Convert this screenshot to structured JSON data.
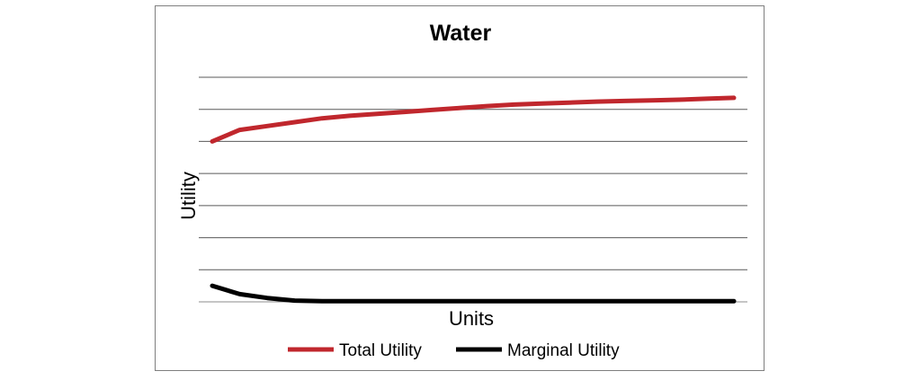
{
  "chart_data": {
    "type": "line",
    "title": "Water",
    "xlabel": "Units",
    "ylabel": "Utility",
    "x": [
      1,
      2,
      3,
      4,
      5,
      6,
      7,
      8,
      9,
      10,
      11,
      12,
      13,
      14,
      15,
      16,
      17,
      18,
      19,
      20
    ],
    "ylim": [
      0,
      7
    ],
    "grid": true,
    "y_tick_labels_shown": false,
    "x_tick_labels_shown": false,
    "legend_position": "bottom",
    "series": [
      {
        "name": "Total Utility",
        "color": "#c0272d",
        "values": [
          5.0,
          5.36,
          5.48,
          5.6,
          5.72,
          5.8,
          5.86,
          5.92,
          5.98,
          6.04,
          6.1,
          6.15,
          6.18,
          6.21,
          6.24,
          6.26,
          6.28,
          6.3,
          6.33,
          6.36
        ]
      },
      {
        "name": "Marginal Utility",
        "color": "#000000",
        "values": [
          0.5,
          0.24,
          0.12,
          0.04,
          0.02,
          0.02,
          0.02,
          0.02,
          0.02,
          0.02,
          0.02,
          0.02,
          0.02,
          0.02,
          0.02,
          0.02,
          0.02,
          0.02,
          0.02,
          0.02
        ]
      }
    ]
  }
}
